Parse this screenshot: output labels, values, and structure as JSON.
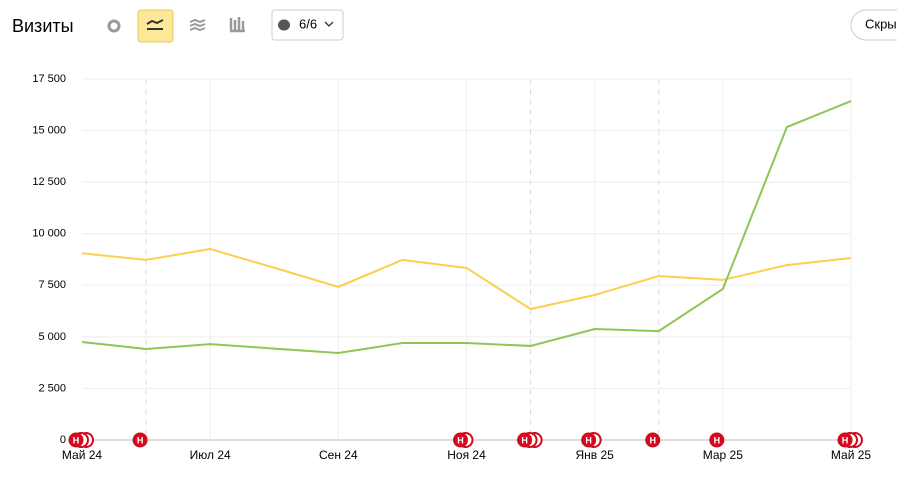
{
  "chart_data": {
    "type": "line",
    "title": "Визиты",
    "series_button": "6/6",
    "hide_button": "Скры",
    "categories": [
      "Май 24",
      null,
      "Июл 24",
      null,
      "Сен 24",
      null,
      "Ноя 24",
      null,
      "Янв 25",
      null,
      "Мар 25",
      null,
      "Май 25"
    ],
    "series": [
      {
        "color": "#fbcf4b",
        "values": [
          9050,
          8730,
          9260,
          8350,
          7420,
          8730,
          8340,
          6350,
          7030,
          7950,
          7760,
          8480,
          8820
        ]
      },
      {
        "color": "#8cc658",
        "values": [
          4750,
          4410,
          4650,
          4430,
          4220,
          4700,
          4700,
          4560,
          5380,
          5280,
          7320,
          15170,
          16430
        ]
      }
    ],
    "ylim": [
      0,
      17500
    ],
    "yticks": [
      0,
      {
        "value": 2500,
        "label": "2 500"
      },
      {
        "value": 5000,
        "label": "5 000"
      },
      {
        "value": 7500,
        "label": "7 500"
      },
      {
        "value": 10000,
        "label": "10 000"
      },
      {
        "value": 12500,
        "label": "12 500"
      },
      {
        "value": 15000,
        "label": "15 000"
      },
      {
        "value": 17500,
        "label": "17 500"
      }
    ],
    "grid": true,
    "markers": [
      {
        "x": 0,
        "count": 3,
        "label": "Н"
      },
      {
        "x": 1,
        "count": 1,
        "label": "Н"
      },
      {
        "x": 6,
        "count": 2,
        "label": "Н"
      },
      {
        "x": 7,
        "count": 3,
        "label": "Н"
      },
      {
        "x": 8,
        "count": 2,
        "label": "Н"
      },
      {
        "x": 9,
        "count": 1,
        "label": "Н"
      },
      {
        "x": 10,
        "count": 1,
        "label": "Н"
      },
      {
        "x": 12,
        "count": 3,
        "label": "Н"
      }
    ]
  }
}
